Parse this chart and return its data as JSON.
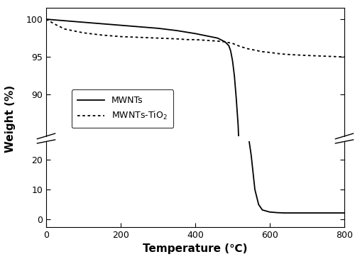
{
  "title": "",
  "xlabel": "Temperature (℃)",
  "ylabel": "Weight (%)",
  "xlim": [
    0,
    800
  ],
  "upper_ylim": [
    84.5,
    101.5
  ],
  "lower_ylim": [
    -2.5,
    26
  ],
  "xticks": [
    0,
    200,
    400,
    600,
    800
  ],
  "upper_yticks": [
    90,
    95,
    100
  ],
  "lower_yticks": [
    0,
    10,
    20
  ],
  "mwnt_solid_x": [
    0,
    25,
    50,
    100,
    150,
    200,
    250,
    300,
    350,
    400,
    430,
    460,
    480,
    490,
    495,
    500,
    505,
    510,
    515,
    520,
    525,
    530,
    540,
    550,
    560,
    570,
    580,
    600,
    620,
    640,
    660,
    700,
    750,
    800
  ],
  "mwnt_solid_y": [
    100.0,
    99.9,
    99.8,
    99.6,
    99.4,
    99.2,
    99.0,
    98.8,
    98.5,
    98.1,
    97.8,
    97.5,
    97.0,
    96.5,
    95.8,
    94.5,
    92.5,
    89.5,
    86.0,
    80.0,
    70.0,
    55.0,
    30.0,
    21.5,
    10.0,
    5.0,
    3.2,
    2.5,
    2.3,
    2.2,
    2.2,
    2.2,
    2.2,
    2.2
  ],
  "mwnt_tio2_x": [
    0,
    25,
    50,
    100,
    150,
    200,
    250,
    300,
    350,
    380,
    400,
    430,
    460,
    480,
    500,
    520,
    540,
    560,
    580,
    600,
    630,
    660,
    700,
    750,
    800
  ],
  "mwnt_tio2_y": [
    100.0,
    99.3,
    98.7,
    98.2,
    97.9,
    97.7,
    97.6,
    97.5,
    97.4,
    97.3,
    97.3,
    97.2,
    97.1,
    97.0,
    96.8,
    96.4,
    96.1,
    95.9,
    95.7,
    95.6,
    95.4,
    95.3,
    95.2,
    95.1,
    95.0
  ],
  "line_color": "#000000",
  "background_color": "#ffffff"
}
